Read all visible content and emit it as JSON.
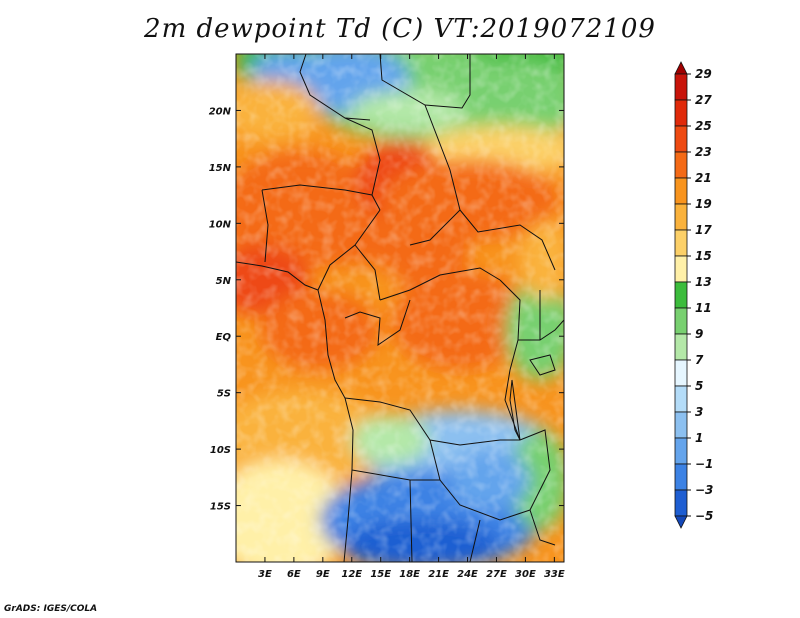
{
  "title": "2m dewpoint Td (C) VT:2019072109",
  "footer": "GrADS: IGES/COLA",
  "map": {
    "lon_range": [
      0,
      34
    ],
    "lat_range": [
      -20,
      25
    ],
    "lon_ticks": [
      {
        "value": 3,
        "label": "3E"
      },
      {
        "value": 6,
        "label": "6E"
      },
      {
        "value": 9,
        "label": "9E"
      },
      {
        "value": 12,
        "label": "12E"
      },
      {
        "value": 15,
        "label": "15E"
      },
      {
        "value": 18,
        "label": "18E"
      },
      {
        "value": 21,
        "label": "21E"
      },
      {
        "value": 24,
        "label": "24E"
      },
      {
        "value": 27,
        "label": "27E"
      },
      {
        "value": 30,
        "label": "30E"
      },
      {
        "value": 33,
        "label": "33E"
      }
    ],
    "lat_ticks": [
      {
        "value": 20,
        "label": "20N"
      },
      {
        "value": 15,
        "label": "15N"
      },
      {
        "value": 10,
        "label": "10N"
      },
      {
        "value": 5,
        "label": "5N"
      },
      {
        "value": 0,
        "label": "EQ"
      },
      {
        "value": -5,
        "label": "5S"
      },
      {
        "value": -10,
        "label": "10S"
      },
      {
        "value": -15,
        "label": "15S"
      }
    ]
  },
  "colorbar": {
    "levels": [
      29,
      27,
      25,
      23,
      21,
      19,
      17,
      15,
      13,
      11,
      9,
      7,
      5,
      3,
      1,
      -1,
      -3,
      -5
    ],
    "labels": [
      "29",
      "27",
      "25",
      "23",
      "21",
      "19",
      "17",
      "15",
      "13",
      "11",
      "9",
      "7",
      "5",
      "3",
      "1",
      "−1",
      "−3",
      "−5"
    ],
    "colors": [
      "#a00000",
      "#c8140a",
      "#e02a0a",
      "#ee4a12",
      "#f46a16",
      "#f8941e",
      "#fab23c",
      "#fcd068",
      "#fff0a8",
      "#3cbc3c",
      "#78d070",
      "#b4e8a8",
      "#e6f6ff",
      "#b4dcf8",
      "#8cc0f0",
      "#64a4ec",
      "#3c82e4",
      "#1e5ed2",
      "#1448b8"
    ]
  }
}
